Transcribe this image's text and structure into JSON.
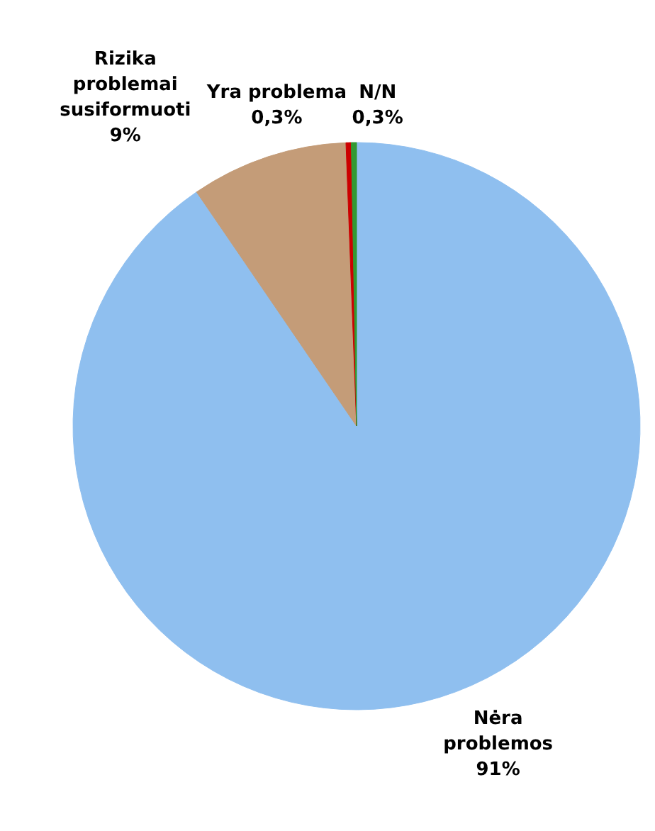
{
  "chart_data": {
    "type": "pie",
    "categories": [
      "Nėra\nproblemos",
      "Rizika\nproblemai\nsusiformuoti",
      "Yra problema",
      "N/N"
    ],
    "values": [
      91,
      9,
      0.3,
      0.3
    ],
    "value_labels": [
      "91%",
      "9%",
      "0,3%",
      "0,3%"
    ],
    "colors": [
      "#8fbfef",
      "#c49c78",
      "#cc0000",
      "#339933"
    ]
  }
}
